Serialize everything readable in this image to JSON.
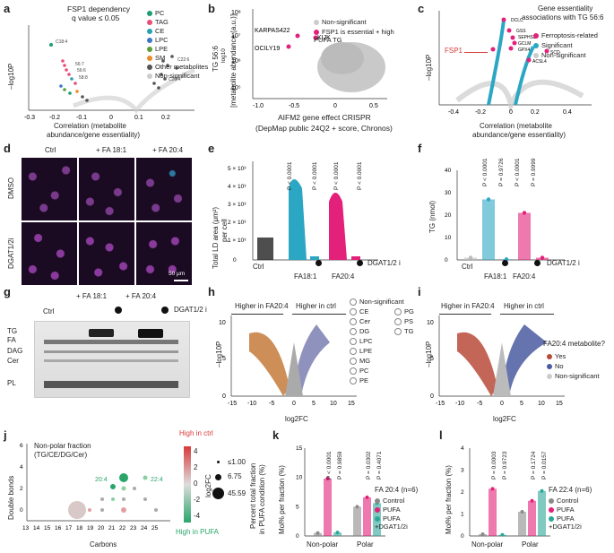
{
  "panel_labels": [
    "a",
    "b",
    "c",
    "d",
    "e",
    "f",
    "g",
    "h",
    "i",
    "j",
    "k",
    "l"
  ],
  "colors": {
    "pc": "#1d9e70",
    "tag": "#e94e77",
    "ce": "#26a0b5",
    "lpc": "#3f76c8",
    "lpe": "#5a9e3a",
    "sm": "#ea8a2a",
    "other": "#555555",
    "nonsig": "#cccccc",
    "magenta": "#e3207a",
    "teal": "#2ba7c4",
    "grey": "#8a8a8a",
    "green": "#2aa56a",
    "red": "#d83a3a"
  },
  "a": {
    "title_1": "FSP1 dependency",
    "title_2": "q value ≤ 0.05",
    "ylabel": "–log10P",
    "xlabel_1": "Correlation (metabolite",
    "xlabel_2": "abundance/gene essentiality)",
    "xticks": [
      "-0.3",
      "-0.2",
      "-0.1",
      "0",
      "0.1",
      "0.2"
    ],
    "legend": [
      "PC",
      "TAG",
      "CE",
      "LPC",
      "LPE",
      "SM",
      "Other metabolites",
      "Non-significant"
    ],
    "annotations": [
      "C18:4",
      "56:7",
      "56:6",
      "58:8",
      "58:8",
      "54:7",
      "52:4",
      "56:8",
      "C20:4",
      "C22:6"
    ]
  },
  "b": {
    "ylabel_1": "TG 56:6",
    "ylabel_2": "[metabolite abundance (a.u.)]",
    "ylabel_3": "log10",
    "xlabel_1": "AIFM2 gene effect CRISPR",
    "xlabel_2": "(DepMap public 24Q2 + score, Chronos)",
    "xticks": [
      "-1.0",
      "-0.5",
      "0",
      "0.5"
    ],
    "yticks": [
      "10⁸",
      "10⁷",
      "10⁶",
      "10⁵"
    ],
    "legend": [
      "Non-significant",
      "FSP1 is essential + high PUFA TG"
    ],
    "labels": [
      "KARPAS422",
      "KIJK",
      "OCILY19"
    ]
  },
  "c": {
    "title_1": "Gene essentiality",
    "title_2": "associations with TG 56:6",
    "ylabel": "–log10P",
    "xlabel_1": "Correlation (metabolite",
    "xlabel_2": "abundance/gene essentiality)",
    "xticks": [
      "-0.4",
      "-0.2",
      "0",
      "0.2",
      "0.4"
    ],
    "legend": [
      "Ferroptosis-related",
      "Significant",
      "Non-significant"
    ],
    "fsp1": "FSP1",
    "genes": [
      "DCLC",
      "GSS",
      "SEPHS2",
      "GCLM",
      "GPX4",
      "ACSL4",
      "SCD"
    ]
  },
  "d": {
    "cols": [
      "Ctrl",
      "+ FA 18:1",
      "+ FA 20:4"
    ],
    "rows": [
      "DMSO",
      "DGAT1/2i"
    ],
    "scale": "50 μm"
  },
  "e": {
    "ylabel_1": "Total LD area (μm²)",
    "ylabel_2": "per cell",
    "yticks": [
      "0",
      "1 × 10³",
      "2 × 10³",
      "3 × 10³",
      "4 × 10³",
      "5 × 10³"
    ],
    "pvalues": [
      "P < 0.0001",
      "P < 0.0001",
      "P < 0.0001",
      "P < 0.0001"
    ],
    "xlabels": [
      "Ctrl",
      "FA18:1",
      "FA20:4"
    ],
    "inhibitor": "DGAT1/2 i"
  },
  "f": {
    "ylabel": "TG (nmol)",
    "yticks": [
      "0",
      "10",
      "20",
      "30",
      "40"
    ],
    "pvalues": [
      "P < 0.0001",
      "P = 0.9726",
      "P < 0.0001",
      "P = 0.9999"
    ],
    "xlabels": [
      "Ctrl",
      "FA18:1",
      "FA20:4"
    ],
    "inhibitor": "DGAT1/2 i",
    "chart_data": {
      "type": "bar",
      "categories": [
        "Ctrl",
        "FA18:1",
        "FA18:1 + DGAT1/2i",
        "FA20:4",
        "FA20:4 + DGAT1/2i"
      ],
      "values": [
        1,
        27,
        0.3,
        21,
        1
      ],
      "ylim": [
        0,
        40
      ]
    }
  },
  "g": {
    "cols": [
      "+ FA 18:1",
      "+ FA 20:4"
    ],
    "ctrl": "Ctrl",
    "inhibitor": "DGAT1/2 i",
    "rows": [
      "TG",
      "FA",
      "DAG",
      "Cer",
      "PL"
    ]
  },
  "h": {
    "left_arrow": "Higher in FA20:4",
    "right_arrow": "Higher in ctrl",
    "ylabel": "–log10P",
    "xlabel": "log2FC",
    "xticks": [
      "-15",
      "-10",
      "-5",
      "0",
      "5",
      "10",
      "15"
    ],
    "yticks": [
      "0",
      "5",
      "10"
    ],
    "legend_col1": [
      "Non-significant",
      "CE",
      "Cer",
      "DG",
      "LPC",
      "LPE",
      "MG",
      "PC",
      "PE"
    ],
    "legend_col2": [
      "PG",
      "PS",
      "TG"
    ]
  },
  "i": {
    "left_arrow": "Higher in FA20:4",
    "right_arrow": "Higher in ctrl",
    "ylabel": "–log10P",
    "xlabel": "log2FC",
    "xticks": [
      "-15",
      "-10",
      "-5",
      "0",
      "5",
      "10",
      "15"
    ],
    "yticks": [
      "0",
      "5",
      "10"
    ],
    "legend_title": "FA20:4 metabolite?",
    "legend": [
      "Yes",
      "No",
      "Non-significant"
    ]
  },
  "j": {
    "title_1": "Non-polar fraction",
    "title_2": "(TG/CE/DG/Cer)",
    "ylabel": "Double bonds",
    "xlabel": "Carbons",
    "xticks": [
      "13",
      "14",
      "15",
      "16",
      "17",
      "18",
      "19",
      "20",
      "21",
      "22",
      "23",
      "24",
      "25"
    ],
    "yticks": [
      "0",
      "2",
      "4",
      "6"
    ],
    "tag1": "20:4",
    "tag2": "22:4",
    "colorbar_top": "High in ctrl",
    "colorbar_bottom": "High in PUFA",
    "colorbar_label": "log2FC",
    "colorbar_ticks": [
      "4",
      "2",
      "0",
      "-2",
      "-4"
    ],
    "size_legend": [
      "≤1.00",
      "6.75",
      "45.59"
    ],
    "size_label_1": "Percent total fraction",
    "size_label_2": "in PUFA condition (%)"
  },
  "k": {
    "ylabel": "Mol% per fraction (%)",
    "yticks": [
      "0",
      "5",
      "10",
      "15"
    ],
    "pvalues": [
      "P < 0.0001",
      "P = 0.9859",
      "P = 0.0302",
      "P = 0.4071"
    ],
    "xlabels": [
      "Non-polar",
      "Polar"
    ],
    "legend_title": "FA 20:4 (n=6)",
    "legend": [
      "Control",
      "PUFA",
      "PUFA +DGAT1/2i"
    ],
    "chart_data": {
      "type": "bar",
      "categories": [
        "Non-polar",
        "Polar"
      ],
      "series": [
        {
          "name": "Control",
          "values": [
            0.5,
            5.0
          ]
        },
        {
          "name": "PUFA",
          "values": [
            9.8,
            6.6
          ]
        },
        {
          "name": "PUFA +DGAT1/2i",
          "values": [
            0.6,
            5.6
          ]
        }
      ],
      "ylim": [
        0,
        15
      ]
    }
  },
  "l": {
    "ylabel": "Mol% per fraction (%)",
    "yticks": [
      "0",
      "1",
      "2",
      "3",
      "4"
    ],
    "pvalues": [
      "P = 0.0003",
      "P = 0.9723",
      "P = 0.1724",
      "P = 0.0157"
    ],
    "xlabels": [
      "Non-polar",
      "Polar"
    ],
    "legend_title": "FA 22:4 (n=6)",
    "legend": [
      "Control",
      "PUFA",
      "PUFA +DGAT1/2i"
    ],
    "chart_data": {
      "type": "bar",
      "categories": [
        "Non-polar",
        "Polar"
      ],
      "series": [
        {
          "name": "Control",
          "values": [
            0.08,
            1.1
          ]
        },
        {
          "name": "PUFA",
          "values": [
            2.15,
            1.6
          ]
        },
        {
          "name": "PUFA +DGAT1/2i",
          "values": [
            0.05,
            2.05
          ]
        }
      ],
      "ylim": [
        0,
        4
      ]
    }
  }
}
